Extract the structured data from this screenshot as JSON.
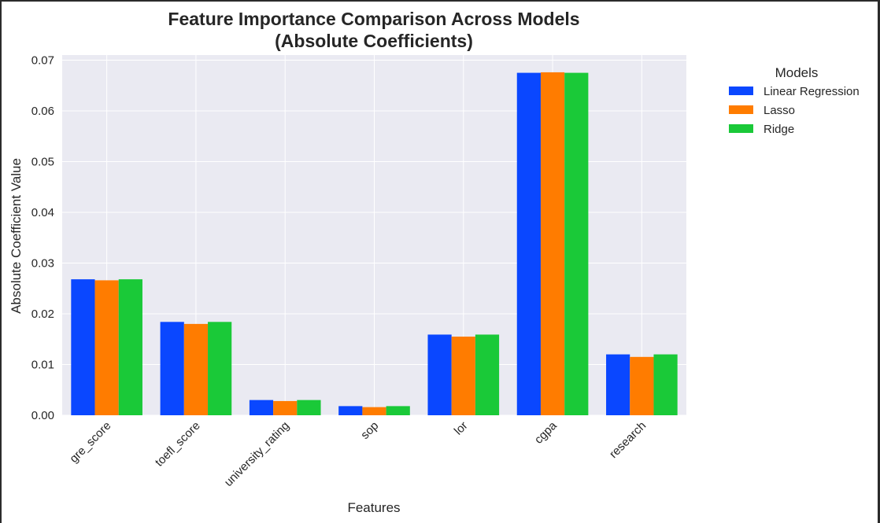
{
  "chart_data": {
    "type": "bar",
    "title": "Feature Importance Comparison Across Models",
    "subtitle": "(Absolute Coefficients)",
    "xlabel": "Features",
    "ylabel": "Absolute Coefficient Value",
    "categories": [
      "gre_score",
      "toefl_score",
      "university_rating",
      "sop",
      "lor",
      "cgpa",
      "research"
    ],
    "series": [
      {
        "name": "Linear Regression",
        "color": "#0a47ff",
        "values": [
          0.0268,
          0.0184,
          0.003,
          0.0018,
          0.0159,
          0.0675,
          0.012
        ]
      },
      {
        "name": "Lasso",
        "color": "#ff7c00",
        "values": [
          0.0266,
          0.018,
          0.0028,
          0.0016,
          0.0155,
          0.0676,
          0.0115
        ]
      },
      {
        "name": "Ridge",
        "color": "#1ac938",
        "values": [
          0.0268,
          0.0184,
          0.003,
          0.0018,
          0.0159,
          0.0675,
          0.012
        ]
      }
    ],
    "ylim": [
      0,
      0.071
    ],
    "yticks": [
      "0.00",
      "0.01",
      "0.02",
      "0.03",
      "0.04",
      "0.05",
      "0.06",
      "0.07"
    ],
    "grid": true,
    "legend": {
      "title": "Models",
      "placement": "outside-top-right"
    }
  }
}
